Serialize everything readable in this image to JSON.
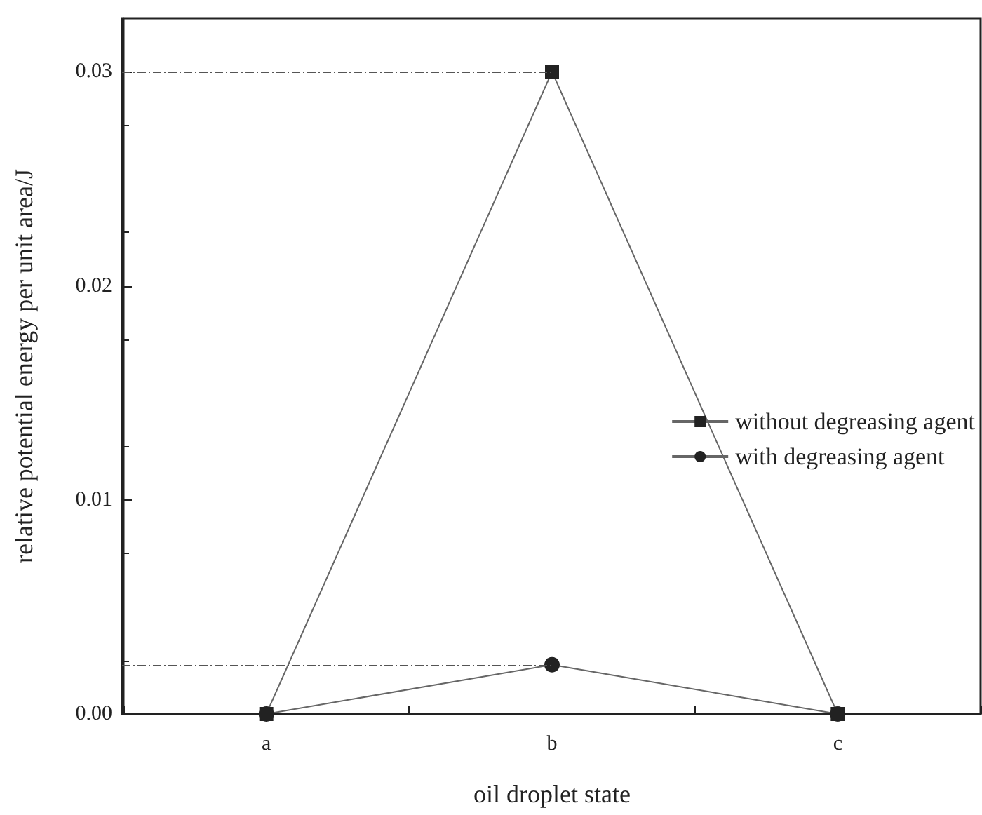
{
  "chart_data": {
    "type": "line",
    "xlabel": "oil droplet state",
    "ylabel": "relative potential energy per unit area/J",
    "categories": [
      "a",
      "b",
      "c"
    ],
    "series": [
      {
        "name": "without degreasing agent",
        "color": "#222222",
        "values": [
          0,
          0.03,
          0
        ],
        "marker": "square"
      },
      {
        "name": "with degreasing agent",
        "color": "#222222",
        "values": [
          0,
          0.0023,
          0
        ],
        "marker": "circle"
      }
    ],
    "ylim": [
      0,
      0.0325
    ],
    "yticks": [
      {
        "value": 0,
        "label": "0.00"
      },
      {
        "value": 0.01,
        "label": "0.01"
      },
      {
        "value": 0.02,
        "label": "0.02"
      },
      {
        "value": 0.03,
        "label": "0.03"
      }
    ],
    "ref_lines": [
      {
        "axis": "y",
        "value": 0.03,
        "line_style": "dashdot"
      },
      {
        "axis": "y",
        "value": 0.0023,
        "line_style": "dashdot"
      }
    ],
    "grid": false,
    "legend": "right",
    "line_style": "solid"
  }
}
